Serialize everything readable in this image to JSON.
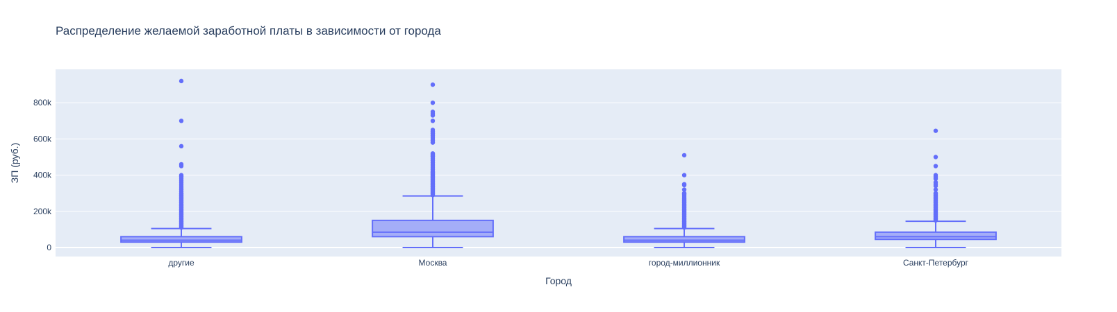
{
  "chart_data": {
    "type": "box",
    "title": "Распределение желаемой заработной платы в зависимости от города",
    "xlabel": "Город",
    "ylabel": "ЗП (руб.)",
    "ylim": [
      -50000,
      970000
    ],
    "y_ticks": [
      0,
      200000,
      400000,
      600000,
      800000
    ],
    "y_tick_labels": [
      "0",
      "200k",
      "400k",
      "600k",
      "800k"
    ],
    "grid": true,
    "colors": {
      "plot_bg": "#e5ecf6",
      "grid": "#ffffff",
      "box_line": "#636efa",
      "box_fill": "rgba(99,110,250,0.5)"
    },
    "categories": [
      "другие",
      "Москва",
      "город-миллионник",
      "Санкт-Петербург"
    ],
    "boxes": [
      {
        "category": "другие",
        "min": 0,
        "q1": 30000,
        "median": 40000,
        "q3": 60000,
        "upper_fence": 105000,
        "outliers": [
          110000,
          115000,
          120000,
          125000,
          130000,
          135000,
          140000,
          145000,
          150000,
          155000,
          160000,
          165000,
          170000,
          175000,
          180000,
          185000,
          190000,
          195000,
          200000,
          205000,
          210000,
          215000,
          220000,
          225000,
          230000,
          235000,
          240000,
          245000,
          250000,
          255000,
          260000,
          265000,
          270000,
          275000,
          280000,
          285000,
          290000,
          295000,
          300000,
          310000,
          320000,
          330000,
          340000,
          350000,
          360000,
          370000,
          380000,
          390000,
          395000,
          400000,
          450000,
          460000,
          560000,
          700000,
          920000
        ]
      },
      {
        "category": "Москва",
        "min": 0,
        "q1": 60000,
        "median": 85000,
        "q3": 150000,
        "upper_fence": 285000,
        "outliers": [
          290000,
          295000,
          300000,
          305000,
          310000,
          315000,
          320000,
          325000,
          330000,
          335000,
          340000,
          345000,
          350000,
          355000,
          360000,
          365000,
          370000,
          375000,
          380000,
          385000,
          390000,
          395000,
          400000,
          405000,
          410000,
          415000,
          420000,
          430000,
          440000,
          450000,
          460000,
          470000,
          480000,
          490000,
          500000,
          505000,
          510000,
          515000,
          520000,
          580000,
          590000,
          600000,
          610000,
          620000,
          630000,
          640000,
          650000,
          700000,
          730000,
          740000,
          750000,
          800000,
          900000
        ]
      },
      {
        "category": "город-миллионник",
        "min": 0,
        "q1": 30000,
        "median": 40000,
        "q3": 60000,
        "upper_fence": 105000,
        "outliers": [
          110000,
          115000,
          120000,
          125000,
          130000,
          135000,
          140000,
          145000,
          150000,
          155000,
          160000,
          165000,
          170000,
          175000,
          180000,
          185000,
          190000,
          195000,
          200000,
          205000,
          210000,
          215000,
          220000,
          225000,
          230000,
          235000,
          240000,
          245000,
          250000,
          255000,
          260000,
          265000,
          270000,
          280000,
          290000,
          295000,
          300000,
          320000,
          345000,
          350000,
          400000,
          510000
        ]
      },
      {
        "category": "Санкт-Петербург",
        "min": 0,
        "q1": 45000,
        "median": 60000,
        "q3": 85000,
        "upper_fence": 145000,
        "outliers": [
          150000,
          155000,
          160000,
          165000,
          170000,
          175000,
          180000,
          185000,
          190000,
          195000,
          200000,
          205000,
          210000,
          215000,
          220000,
          225000,
          230000,
          235000,
          240000,
          245000,
          250000,
          255000,
          260000,
          265000,
          270000,
          275000,
          280000,
          285000,
          290000,
          295000,
          300000,
          320000,
          340000,
          350000,
          360000,
          380000,
          390000,
          400000,
          450000,
          500000,
          645000
        ]
      }
    ]
  }
}
